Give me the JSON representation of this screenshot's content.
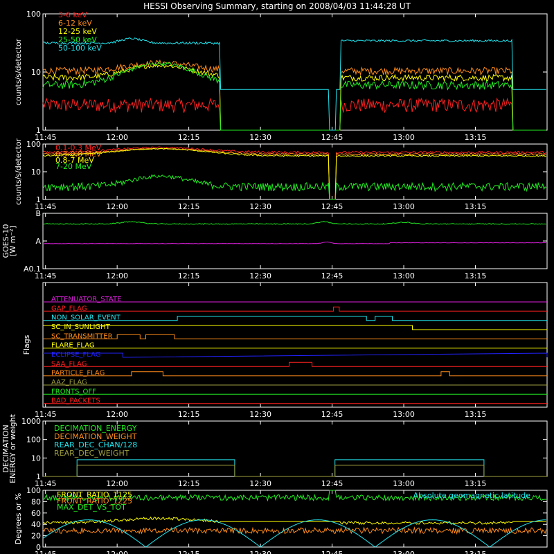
{
  "title": "HESSI Observing Summary, starting on 2008/04/03 11:44:28 UT",
  "x_ticks": [
    "11:45",
    "12:00",
    "12:15",
    "12:30",
    "12:45",
    "13:00",
    "13:15"
  ],
  "colors": {
    "red": "#ff2020",
    "orange": "#ff8c1a",
    "yellow": "#ffff00",
    "green": "#22ee22",
    "cyan": "#22e6f0",
    "magenta": "#e020e0",
    "blue": "#2222ff",
    "olive": "#a0a040",
    "white": "#ffffff"
  },
  "chart_data": [
    {
      "type": "line",
      "ylabel": "counts/s/detector",
      "y_scale": "log",
      "ylim": [
        1,
        100
      ],
      "y_ticks": [
        "1",
        "10",
        "100"
      ],
      "series": [
        {
          "name": "3-6 keV",
          "color": "red"
        },
        {
          "name": "6-12 keV",
          "color": "orange"
        },
        {
          "name": "12-25 keV",
          "color": "yellow"
        },
        {
          "name": "25-50 keV",
          "color": "green"
        },
        {
          "name": "50-100 keV",
          "color": "cyan"
        }
      ]
    },
    {
      "type": "line",
      "ylabel": "counts/s/detector",
      "y_scale": "log",
      "ylim": [
        1,
        100
      ],
      "y_ticks": [
        "1",
        "10",
        "100"
      ],
      "series": [
        {
          "name": "0.1-0.3 MeV",
          "color": "red"
        },
        {
          "name": "0.3-0.8 MeV",
          "color": "orange"
        },
        {
          "name": "0.8-7 MeV",
          "color": "yellow"
        },
        {
          "name": "7-20 MeV",
          "color": "green"
        }
      ]
    },
    {
      "type": "line",
      "ylabel": "GOES-10",
      "ylabel2": "[W m⁻²]",
      "y_ticks": [
        "A0.1",
        "A",
        "B"
      ]
    },
    {
      "type": "line",
      "ylabel": "Flags",
      "flags": [
        {
          "name": "ATTENUATOR_STATE",
          "color": "magenta"
        },
        {
          "name": "GAP_FLAG",
          "color": "red"
        },
        {
          "name": "NON_SOLAR_EVENT",
          "color": "cyan"
        },
        {
          "name": "SC_IN_SUNLIGHT",
          "color": "yellow"
        },
        {
          "name": "SC_TRANSMITTER",
          "color": "orange"
        },
        {
          "name": "FLARE_FLAG",
          "color": "yellow"
        },
        {
          "name": "ECLIPSE_FLAG",
          "color": "blue"
        },
        {
          "name": "SAA_FLAG",
          "color": "red"
        },
        {
          "name": "PARTICLE_FLAG",
          "color": "orange"
        },
        {
          "name": "AAZ_FLAG",
          "color": "olive"
        },
        {
          "name": "FRONTS_OFF",
          "color": "green"
        },
        {
          "name": "BAD_PACKETS",
          "color": "red"
        }
      ]
    },
    {
      "type": "line",
      "ylabel": "DECIMATION",
      "ylabel2": "ENERGY or weight",
      "y_scale": "log",
      "y_ticks": [
        "1",
        "10",
        "100",
        "1000"
      ],
      "series": [
        {
          "name": "DECIMATION_ENERGY",
          "color": "green"
        },
        {
          "name": "DECIMATION_WEIGHT",
          "color": "orange"
        },
        {
          "name": "REAR_DEC_CHAN/128",
          "color": "cyan"
        },
        {
          "name": "REAR_DEC_WEIGHT",
          "color": "olive"
        }
      ]
    },
    {
      "type": "line",
      "ylabel": "Degrees or %",
      "ylim": [
        0,
        100
      ],
      "y_ticks": [
        "0",
        "20",
        "40",
        "60",
        "80",
        "100"
      ],
      "annotation": "Absolute geomagnetic latitude",
      "series": [
        {
          "name": "FRONT_RATIO_1125",
          "color": "yellow"
        },
        {
          "name": "FRONT_RATIO_1225",
          "color": "orange"
        },
        {
          "name": "MAX_DET_VS_TOT",
          "color": "green"
        }
      ]
    }
  ]
}
